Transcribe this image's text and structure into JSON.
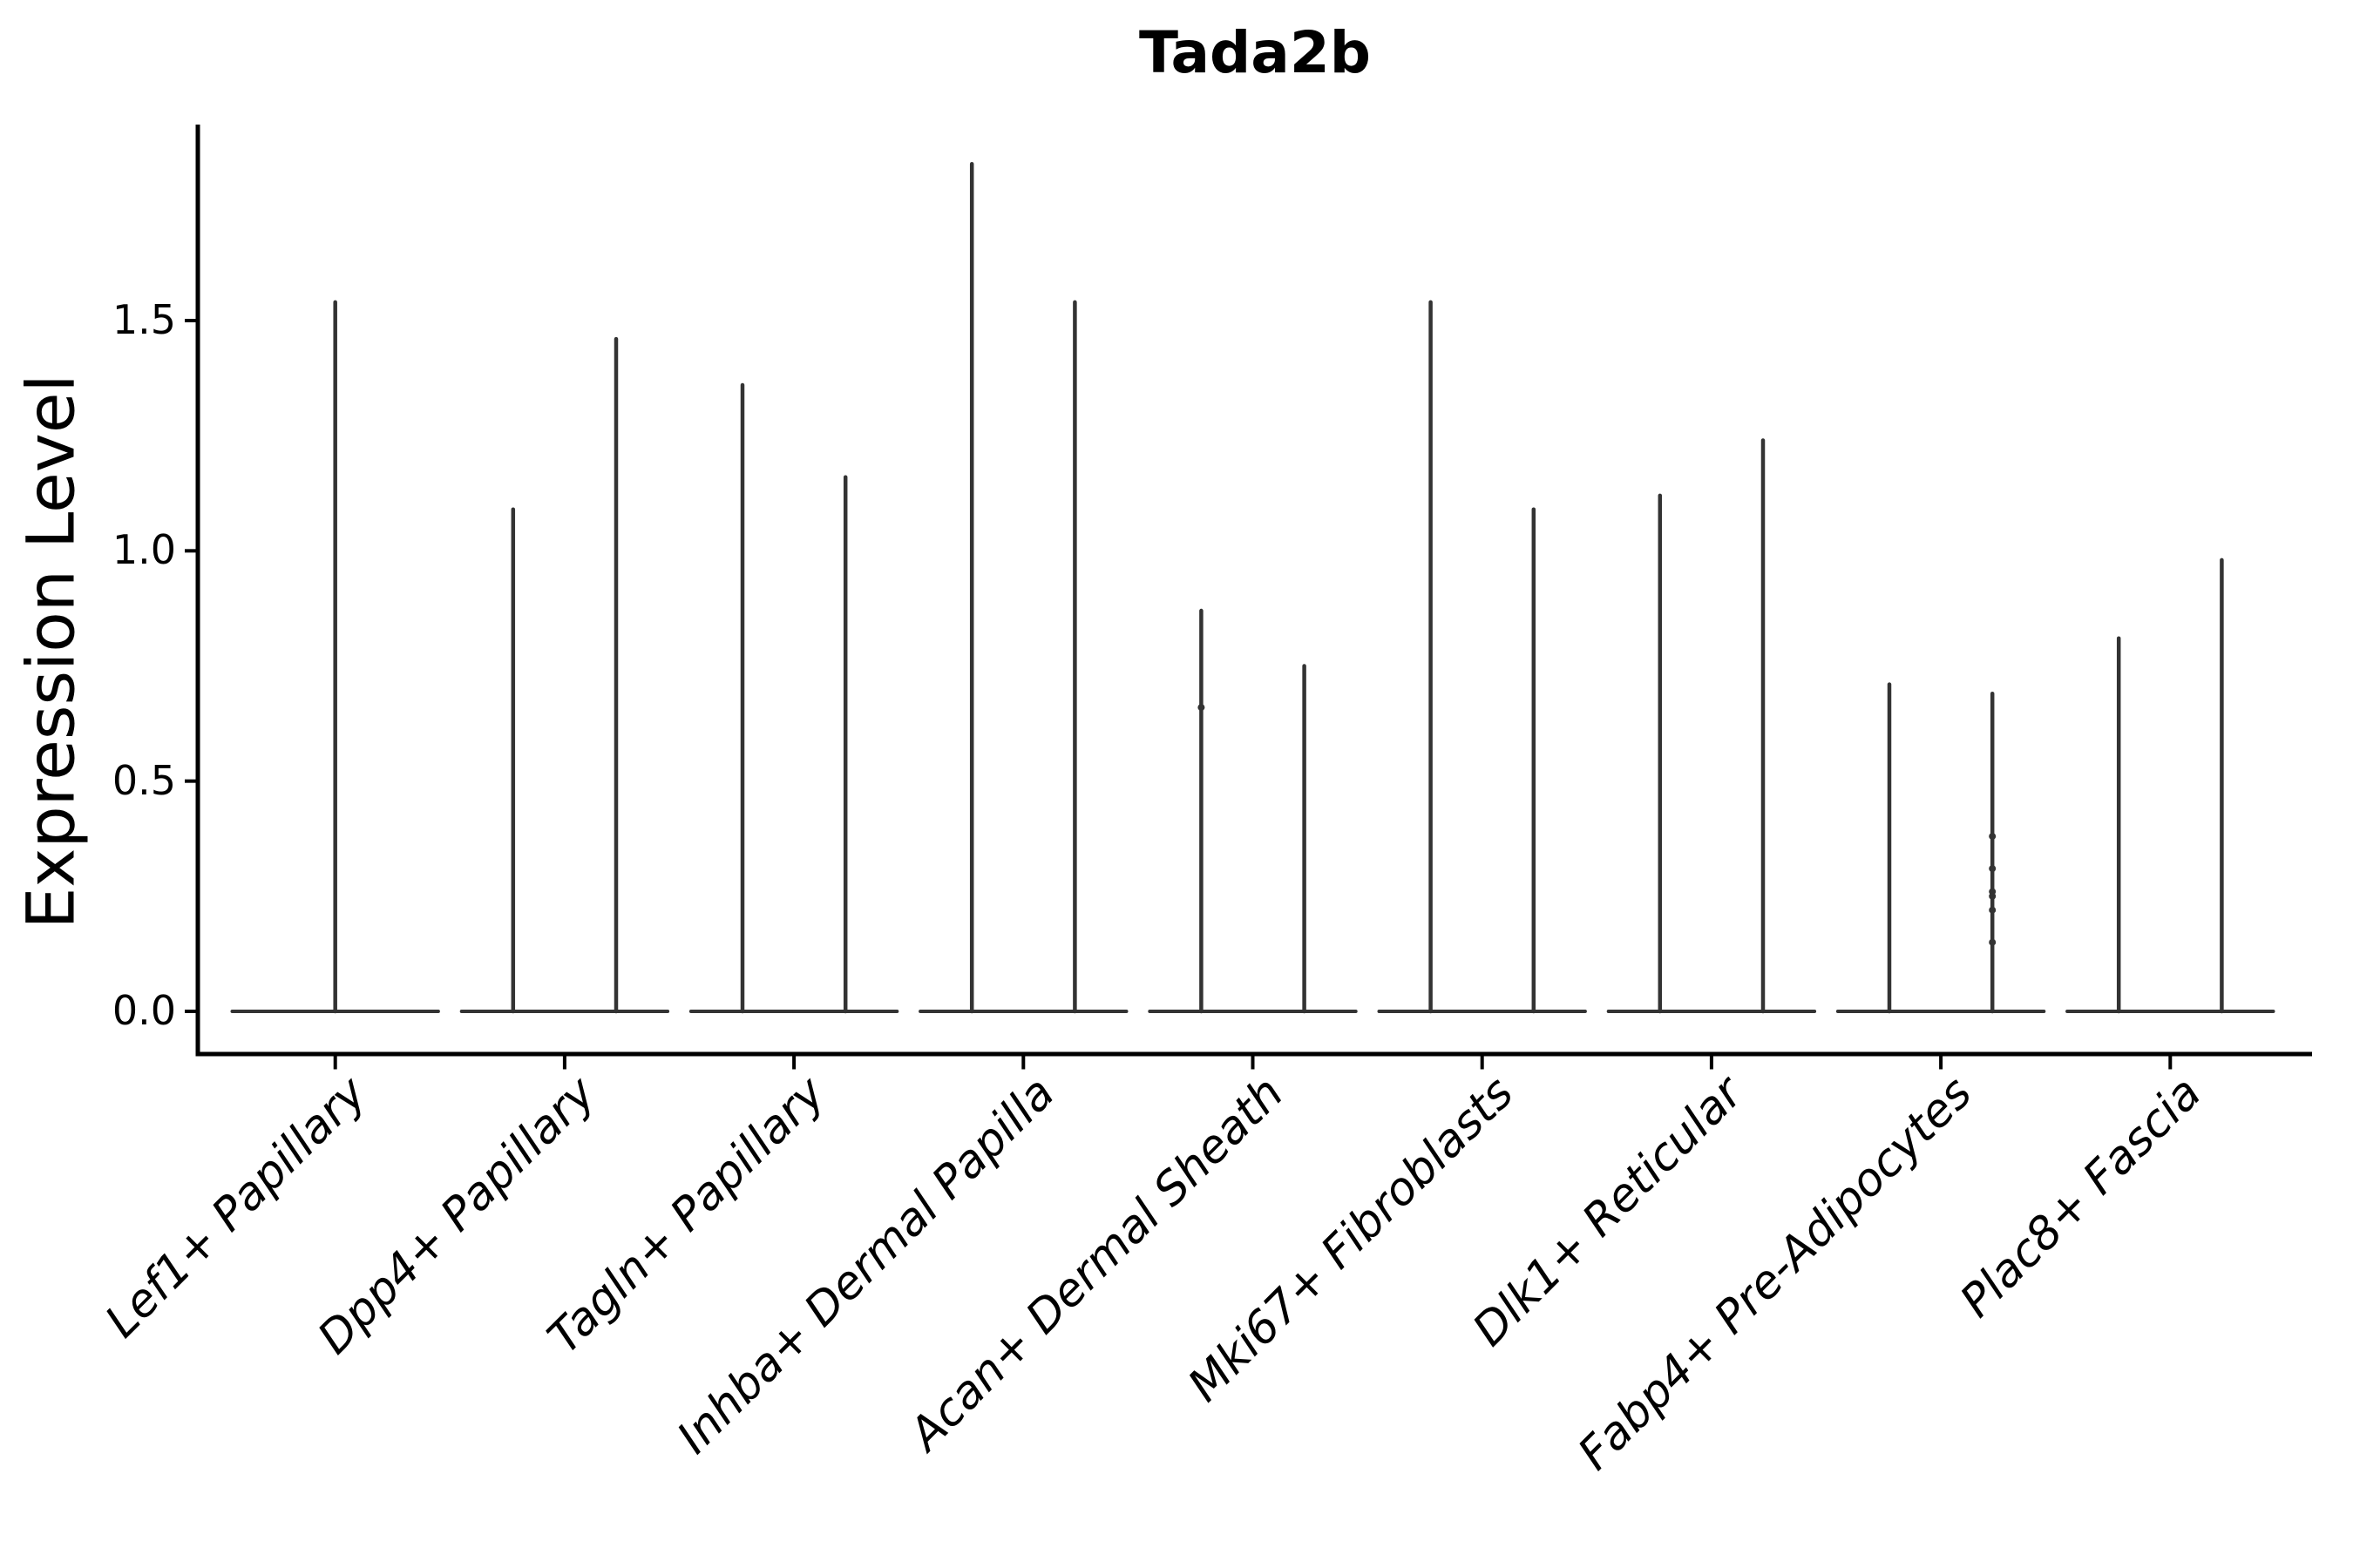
{
  "chart_data": {
    "type": "violin",
    "title": "Tada2b",
    "ylabel": "Expression Level",
    "xlabel": "",
    "yticks": [
      "0.0",
      "0.5",
      "1.0",
      "1.5"
    ],
    "ylim": [
      0,
      1.92
    ],
    "grid": false,
    "legend": "none",
    "line_color": "#333333",
    "text_color": "#000000",
    "categories": [
      {
        "label": "Lef1+ Papillary",
        "violin_maxima": [
          1.54
        ]
      },
      {
        "label": "Dpp4+ Papillary",
        "violin_maxima": [
          1.09,
          1.46
        ]
      },
      {
        "label": "Tagln+ Papillary",
        "violin_maxima": [
          1.36,
          1.16
        ]
      },
      {
        "label": "Inhba+ Dermal Papilla",
        "violin_maxima": [
          1.84,
          1.54
        ]
      },
      {
        "label": "Acan+ Dermal Sheath",
        "violin_maxima": [
          0.87,
          0.75
        ]
      },
      {
        "label": "Mki67+ Fibroblasts",
        "violin_maxima": [
          1.54,
          1.09
        ]
      },
      {
        "label": "Dlk1+ Reticular",
        "violin_maxima": [
          1.12,
          1.24
        ]
      },
      {
        "label": "Fabp4+ Pre-Adipocytes",
        "violin_maxima": [
          0.71,
          0.69
        ]
      },
      {
        "label": "Plac8+ Fascia",
        "violin_maxima": [
          0.81,
          0.98
        ]
      }
    ],
    "violin_description": "Violins are needle-shaped: wide flat base at expression 0 with a thin spike rising to the maximum expression value; categories with two maxima contain two side-by-side violins, categories with one maximum contain a single full-width violin.",
    "jitter_points": [
      {
        "category_index": 4,
        "violin": 0,
        "values": [
          0.66
        ]
      },
      {
        "category_index": 7,
        "violin": 1,
        "values": [
          0.38,
          0.31,
          0.26,
          0.25,
          0.22,
          0.15
        ]
      }
    ]
  }
}
